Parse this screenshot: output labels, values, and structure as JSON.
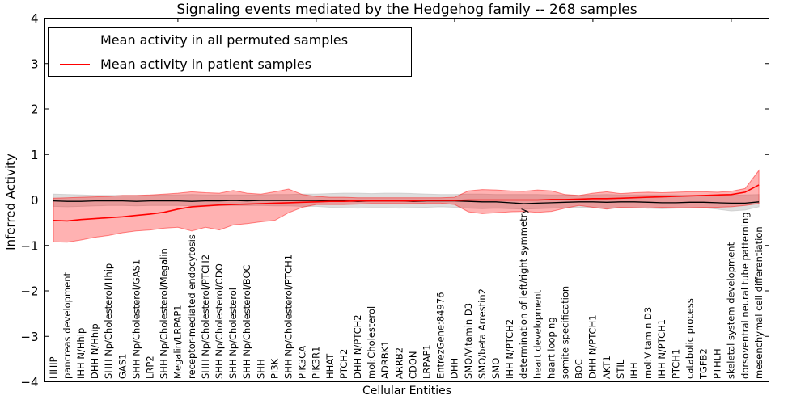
{
  "title": "Signaling events mediated by the Hedgehog family -- 268 samples",
  "axes": {
    "ylabel": "Inferred Activity",
    "xlabel": "Cellular Entities",
    "y_tick_labels": [
      "4",
      "3",
      "2",
      "1",
      "0",
      "−1",
      "−2",
      "−3",
      "−4"
    ],
    "y_tick_values": [
      4,
      3,
      2,
      1,
      0,
      -1,
      -2,
      -3,
      -4
    ]
  },
  "legend": {
    "entries": [
      {
        "label": "Mean activity in all permuted samples",
        "color": "#000000"
      },
      {
        "label": "Mean activity in patient samples",
        "color": "#ff0000"
      }
    ]
  },
  "colors": {
    "permuted_line": "#000000",
    "patient_line": "#ff0000",
    "patient_band": "#ff0000",
    "permuted_band": "#c8c8c8",
    "zero_line": "#000000",
    "spine": "#000000",
    "background": "#ffffff"
  },
  "chart_data": {
    "type": "line",
    "title": "Signaling events mediated by the Hedgehog family -- 268 samples",
    "xlabel": "Cellular Entities",
    "ylabel": "Inferred Activity",
    "ylim": [
      -4,
      4
    ],
    "grid": false,
    "legend_position": "upper left",
    "zero_line": true,
    "x_label_rotation": 90,
    "x_major_tick_indices": [
      9,
      19,
      29,
      39,
      49
    ],
    "categories": [
      "HHIP",
      "pancreas development",
      "IHH N/Hhip",
      "DHH N/Hhip",
      "SHH Np/Cholesterol/Hhip",
      "GAS1",
      "SHH Np/Cholesterol/GAS1",
      "LRP2",
      "SHH Np/Cholesterol/Megalin",
      "Megalin/LRPAP1",
      "receptor-mediated endocytosis",
      "SHH Np/Cholesterol/PTCH2",
      "SHH Np/Cholesterol/CDO",
      "SHH Np/Cholesterol",
      "SHH Np/Cholesterol/BOC",
      "SHH",
      "PI3K",
      "SHH Np/Cholesterol/PTCH1",
      "PIK3CA",
      "PIK3R1",
      "HHAT",
      "PTCH2",
      "DHH N/PTCH2",
      "mol:Cholesterol",
      "ADRBK1",
      "ARRB2",
      "CDON",
      "LRPAP1",
      "EntrezGene:84976",
      "DHH",
      "SMO/Vitamin D3",
      "SMO/beta Arrestin2",
      "SMO",
      "IHH N/PTCH2",
      "determination of left/right symmetry",
      "heart development",
      "heart looping",
      "somite specification",
      "BOC",
      "DHH N/PTCH1",
      "AKT1",
      "STIL",
      "IHH",
      "mol:Vitamin D3",
      "IHH N/PTCH1",
      "PTCH1",
      "catabolic process",
      "TGFB2",
      "PTHLH",
      "skeletal system development",
      "dorsoventral neural tube patterning",
      "mesenchymal cell differentiation"
    ],
    "series": [
      {
        "name": "Mean activity in all permuted samples",
        "color": "#000000",
        "values": [
          -0.02,
          -0.03,
          -0.03,
          -0.02,
          -0.02,
          -0.02,
          -0.03,
          -0.02,
          -0.02,
          -0.02,
          -0.03,
          -0.02,
          -0.02,
          -0.01,
          -0.02,
          -0.01,
          -0.01,
          -0.01,
          -0.01,
          -0.01,
          -0.02,
          -0.02,
          -0.03,
          -0.02,
          -0.02,
          -0.02,
          -0.03,
          -0.02,
          -0.02,
          -0.02,
          -0.03,
          -0.04,
          -0.04,
          -0.06,
          -0.08,
          -0.07,
          -0.06,
          -0.05,
          -0.04,
          -0.04,
          -0.05,
          -0.04,
          -0.04,
          -0.05,
          -0.06,
          -0.06,
          -0.05,
          -0.05,
          -0.06,
          -0.07,
          -0.07,
          -0.04
        ]
      },
      {
        "name": "Mean activity in patient samples",
        "color": "#ff0000",
        "values": [
          -0.45,
          -0.46,
          -0.43,
          -0.41,
          -0.39,
          -0.37,
          -0.34,
          -0.31,
          -0.27,
          -0.2,
          -0.15,
          -0.13,
          -0.11,
          -0.1,
          -0.09,
          -0.08,
          -0.07,
          -0.06,
          -0.05,
          -0.04,
          -0.03,
          -0.03,
          -0.02,
          -0.02,
          -0.02,
          -0.02,
          -0.02,
          -0.01,
          -0.01,
          -0.01,
          0.0,
          0.0,
          0.0,
          0.0,
          0.0,
          0.0,
          0.01,
          0.01,
          0.02,
          0.03,
          0.03,
          0.04,
          0.05,
          0.06,
          0.07,
          0.08,
          0.09,
          0.1,
          0.11,
          0.12,
          0.17,
          0.33
        ]
      }
    ],
    "bands": [
      {
        "name": "permuted-range",
        "color": "#c8c8c8",
        "opacity": 0.6,
        "upper": [
          0.13,
          0.12,
          0.11,
          0.1,
          0.1,
          0.1,
          0.1,
          0.1,
          0.11,
          0.11,
          0.12,
          0.11,
          0.11,
          0.11,
          0.11,
          0.11,
          0.12,
          0.12,
          0.13,
          0.13,
          0.14,
          0.15,
          0.15,
          0.14,
          0.15,
          0.15,
          0.14,
          0.13,
          0.12,
          0.12,
          0.13,
          0.13,
          0.12,
          0.12,
          0.12,
          0.12,
          0.11,
          0.11,
          0.1,
          0.11,
          0.12,
          0.11,
          0.11,
          0.11,
          0.11,
          0.11,
          0.1,
          0.1,
          0.1,
          0.1,
          0.11,
          0.12
        ],
        "lower": [
          -0.14,
          -0.15,
          -0.14,
          -0.13,
          -0.12,
          -0.12,
          -0.13,
          -0.12,
          -0.12,
          -0.12,
          -0.13,
          -0.12,
          -0.12,
          -0.12,
          -0.12,
          -0.12,
          -0.13,
          -0.13,
          -0.14,
          -0.14,
          -0.16,
          -0.17,
          -0.18,
          -0.17,
          -0.17,
          -0.18,
          -0.17,
          -0.16,
          -0.15,
          -0.16,
          -0.18,
          -0.19,
          -0.18,
          -0.19,
          -0.2,
          -0.19,
          -0.18,
          -0.17,
          -0.16,
          -0.17,
          -0.19,
          -0.17,
          -0.17,
          -0.18,
          -0.19,
          -0.18,
          -0.17,
          -0.17,
          -0.2,
          -0.24,
          -0.22,
          -0.15
        ]
      },
      {
        "name": "patient-range",
        "color": "#ff0000",
        "opacity": 0.3,
        "upper": [
          0.04,
          0.05,
          0.06,
          0.07,
          0.08,
          0.1,
          0.1,
          0.11,
          0.13,
          0.15,
          0.18,
          0.16,
          0.15,
          0.21,
          0.15,
          0.13,
          0.18,
          0.24,
          0.12,
          0.08,
          0.06,
          0.06,
          0.05,
          0.05,
          0.05,
          0.05,
          0.05,
          0.05,
          0.05,
          0.06,
          0.2,
          0.23,
          0.22,
          0.2,
          0.19,
          0.22,
          0.2,
          0.12,
          0.1,
          0.15,
          0.18,
          0.14,
          0.16,
          0.17,
          0.16,
          0.17,
          0.18,
          0.18,
          0.17,
          0.19,
          0.25,
          0.65
        ],
        "lower": [
          -0.92,
          -0.93,
          -0.88,
          -0.82,
          -0.78,
          -0.72,
          -0.68,
          -0.66,
          -0.62,
          -0.6,
          -0.68,
          -0.6,
          -0.66,
          -0.55,
          -0.52,
          -0.48,
          -0.45,
          -0.28,
          -0.16,
          -0.1,
          -0.1,
          -0.1,
          -0.09,
          -0.08,
          -0.08,
          -0.08,
          -0.08,
          -0.07,
          -0.07,
          -0.1,
          -0.26,
          -0.3,
          -0.28,
          -0.26,
          -0.25,
          -0.27,
          -0.25,
          -0.18,
          -0.12,
          -0.16,
          -0.2,
          -0.16,
          -0.17,
          -0.18,
          -0.16,
          -0.17,
          -0.17,
          -0.16,
          -0.16,
          -0.15,
          -0.12,
          -0.08
        ]
      }
    ]
  }
}
